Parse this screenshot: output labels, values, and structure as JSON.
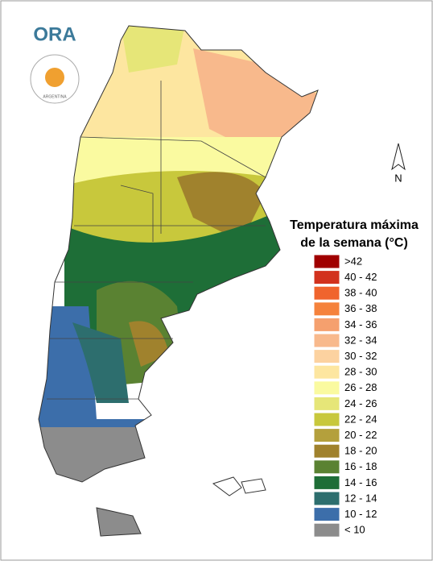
{
  "logo": {
    "text": "ORA",
    "subtext": "ARGENTINA"
  },
  "compass": "N",
  "legend": {
    "title": [
      "Temperatura máxima",
      "de la semana (°C)"
    ],
    "items": [
      {
        "label": ">42",
        "color": "#a00000"
      },
      {
        "label": "40 - 42",
        "color": "#d2321e"
      },
      {
        "label": "38 - 40",
        "color": "#f0642d"
      },
      {
        "label": "36 - 38",
        "color": "#f5823c"
      },
      {
        "label": "34 - 36",
        "color": "#f5a06e"
      },
      {
        "label": "32 - 34",
        "color": "#f8b98c"
      },
      {
        "label": "30 - 32",
        "color": "#fcd2a0"
      },
      {
        "label": "28 - 30",
        "color": "#fde6a0"
      },
      {
        "label": "26 - 28",
        "color": "#fafaa0"
      },
      {
        "label": "24 - 26",
        "color": "#e6e678"
      },
      {
        "label": "22 - 24",
        "color": "#c8c83c"
      },
      {
        "label": "20 - 22",
        "color": "#b4a03c"
      },
      {
        "label": "18 - 20",
        "color": "#a0822d"
      },
      {
        "label": "16 - 18",
        "color": "#5a8232"
      },
      {
        "label": "14 - 16",
        "color": "#1e6e37"
      },
      {
        "label": "12 - 14",
        "color": "#2d6e6e"
      },
      {
        "label": "10 - 12",
        "color": "#3c6eaa"
      },
      {
        "label": "< 10",
        "color": "#8c8c8c"
      }
    ]
  }
}
